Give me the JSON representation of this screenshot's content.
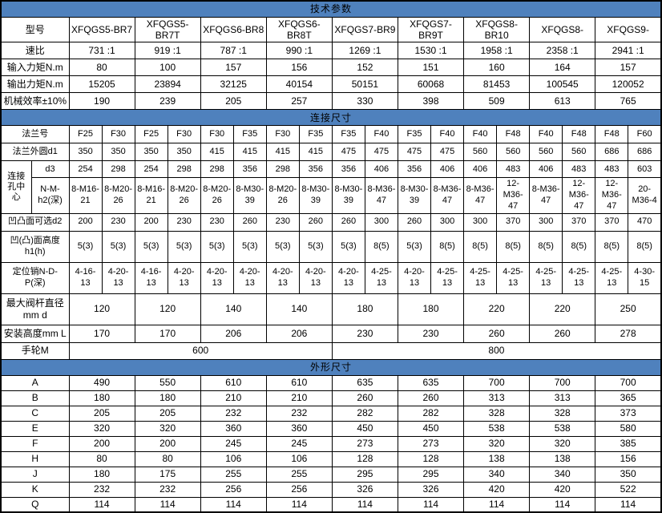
{
  "sections": {
    "tech": "技术参数",
    "connection": "连接尺寸",
    "overall": "外形尺寸"
  },
  "colors": {
    "banner_bg": "#4f81bd",
    "border": "#000000",
    "text": "#000000"
  },
  "rows": {
    "model": {
      "label": "型号",
      "values": [
        "XFQGS5-BR7",
        "XFQGS5-BR7T",
        "XFQGS6-BR8",
        "XFQGS6-BR8T",
        "XFQGS7-BR9",
        "XFQGS7-BR9T",
        "XFQGS8-BR10",
        "XFQGS8-",
        "XFQGS9-"
      ]
    },
    "ratio": {
      "label": "速比",
      "values": [
        "731 :1",
        "919 :1",
        "787 :1",
        "990 :1",
        "1269 :1",
        "1530 :1",
        "1958 :1",
        "2358 :1",
        "2941 :1"
      ]
    },
    "input_torque": {
      "label": "输入力矩N.m",
      "values": [
        "80",
        "100",
        "157",
        "156",
        "152",
        "151",
        "160",
        "164",
        "157"
      ]
    },
    "output_torque": {
      "label": "输出力矩N.m",
      "values": [
        "15205",
        "23894",
        "32125",
        "40154",
        "50151",
        "60068",
        "81453",
        "100545",
        "120052"
      ]
    },
    "efficiency": {
      "label": "机械效率±10%",
      "values": [
        "190",
        "239",
        "205",
        "257",
        "330",
        "398",
        "509",
        "613",
        "765"
      ]
    },
    "flange_no": {
      "label": "法兰号",
      "values": [
        "F25",
        "F30",
        "F25",
        "F30",
        "F30",
        "F35",
        "F30",
        "F35",
        "F35",
        "F40",
        "F35",
        "F40",
        "F40",
        "F48",
        "F40",
        "F48",
        "F48",
        "F60"
      ]
    },
    "flange_od": {
      "label": "法兰外圆d1",
      "values": [
        "350",
        "350",
        "350",
        "350",
        "415",
        "415",
        "415",
        "415",
        "475",
        "475",
        "475",
        "475",
        "560",
        "560",
        "560",
        "560",
        "686",
        "686"
      ]
    },
    "conn_center": {
      "label": "连接孔中心"
    },
    "d3": {
      "label": "d3",
      "values": [
        "254",
        "298",
        "254",
        "298",
        "298",
        "356",
        "298",
        "356",
        "356",
        "406",
        "356",
        "406",
        "406",
        "483",
        "406",
        "483",
        "483",
        "603"
      ]
    },
    "nmh2": {
      "label": "N-M-h2(深)",
      "values": [
        "8-M16-21",
        "8-M20-26",
        "8-M16-21",
        "8-M20-26",
        "8-M20-26",
        "8-M30-39",
        "8-M20-26",
        "8-M30-39",
        "8-M30-39",
        "8-M36-47",
        "8-M30-39",
        "8-M36-47",
        "8-M36-47",
        "12-M36-47",
        "8-M36-47",
        "12-M36-47",
        "12-M36-47",
        "20-M36-4"
      ]
    },
    "d2": {
      "label": "凹凸面可选d2",
      "values": [
        "200",
        "230",
        "200",
        "230",
        "230",
        "260",
        "230",
        "260",
        "260",
        "300",
        "260",
        "300",
        "300",
        "370",
        "300",
        "370",
        "370",
        "470"
      ]
    },
    "h1": {
      "label": "凹(凸)面高度h1(h)",
      "values": [
        "5(3)",
        "5(3)",
        "5(3)",
        "5(3)",
        "5(3)",
        "5(3)",
        "5(3)",
        "5(3)",
        "5(3)",
        "8(5)",
        "5(3)",
        "8(5)",
        "8(5)",
        "8(5)",
        "8(5)",
        "8(5)",
        "8(5)",
        "8(5)"
      ]
    },
    "pin": {
      "label": "定位销N-D-P(深)",
      "values": [
        "4-16-13",
        "4-20-13",
        "4-16-13",
        "4-20-13",
        "4-20-13",
        "4-20-13",
        "4-20-13",
        "4-20-13",
        "4-20-13",
        "4-25-13",
        "4-20-13",
        "4-25-13",
        "4-25-13",
        "4-25-13",
        "4-25-13",
        "4-25-13",
        "4-25-13",
        "4-30-15"
      ]
    },
    "stem_dia": {
      "label": "最大阀杆直径mm d",
      "values": [
        "120",
        "120",
        "140",
        "140",
        "180",
        "180",
        "220",
        "220",
        "250"
      ]
    },
    "mount_h": {
      "label": "安装高度mm L",
      "values": [
        "170",
        "170",
        "206",
        "206",
        "230",
        "230",
        "260",
        "260",
        "278"
      ]
    },
    "handwheel": {
      "label": "手轮M",
      "left": "600",
      "right": "800"
    },
    "dim_a": {
      "label": "A",
      "values": [
        "490",
        "550",
        "610",
        "610",
        "635",
        "635",
        "700",
        "700",
        "700"
      ]
    },
    "dim_b": {
      "label": "B",
      "values": [
        "180",
        "180",
        "210",
        "210",
        "260",
        "260",
        "313",
        "313",
        "365"
      ]
    },
    "dim_c": {
      "label": "C",
      "values": [
        "205",
        "205",
        "232",
        "232",
        "282",
        "282",
        "328",
        "328",
        "373"
      ]
    },
    "dim_e": {
      "label": "E",
      "values": [
        "320",
        "320",
        "360",
        "360",
        "450",
        "450",
        "538",
        "538",
        "580"
      ]
    },
    "dim_f": {
      "label": "F",
      "values": [
        "200",
        "200",
        "245",
        "245",
        "273",
        "273",
        "320",
        "320",
        "385"
      ]
    },
    "dim_h": {
      "label": "H",
      "values": [
        "80",
        "80",
        "106",
        "106",
        "128",
        "128",
        "138",
        "138",
        "156"
      ]
    },
    "dim_j": {
      "label": "J",
      "values": [
        "180",
        "175",
        "255",
        "255",
        "295",
        "295",
        "340",
        "340",
        "350"
      ]
    },
    "dim_k": {
      "label": "K",
      "values": [
        "232",
        "232",
        "256",
        "256",
        "326",
        "326",
        "420",
        "420",
        "522"
      ]
    },
    "dim_q": {
      "label": "Q",
      "values": [
        "114",
        "114",
        "114",
        "114",
        "114",
        "114",
        "114",
        "114",
        "114"
      ]
    }
  }
}
